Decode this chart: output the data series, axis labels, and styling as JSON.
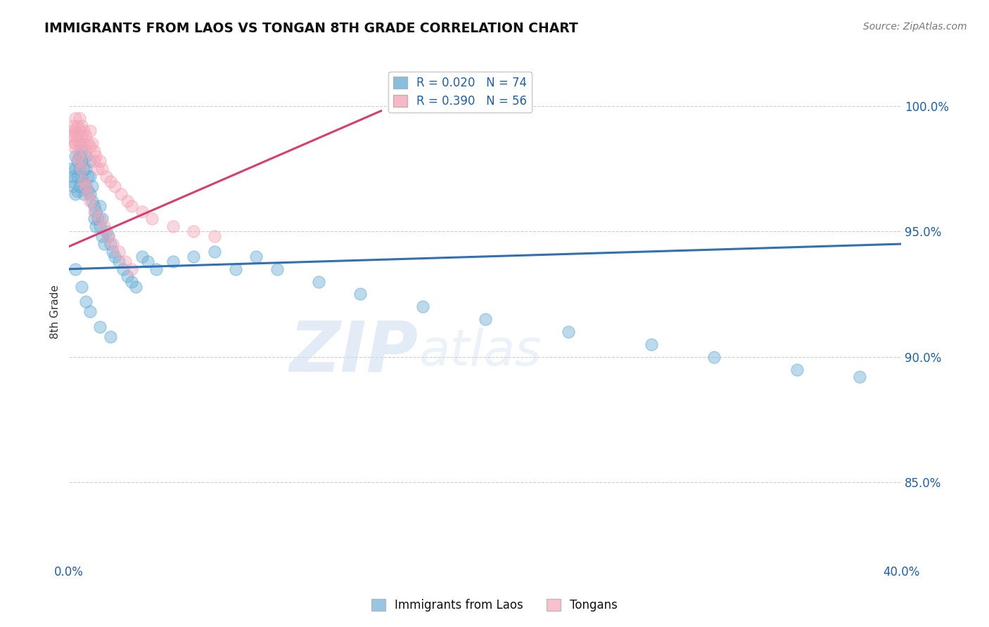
{
  "title": "IMMIGRANTS FROM LAOS VS TONGAN 8TH GRADE CORRELATION CHART",
  "source": "Source: ZipAtlas.com",
  "ylabel": "8th Grade",
  "ytick_labels": [
    "85.0%",
    "90.0%",
    "95.0%",
    "100.0%"
  ],
  "ytick_values": [
    0.85,
    0.9,
    0.95,
    1.0
  ],
  "xlim": [
    0.0,
    0.4
  ],
  "ylim": [
    0.818,
    1.018
  ],
  "legend_blue_r": "R = 0.020",
  "legend_blue_n": "N = 74",
  "legend_pink_r": "R = 0.390",
  "legend_pink_n": "N = 56",
  "legend_label_blue": "Immigrants from Laos",
  "legend_label_pink": "Tongans",
  "blue_color": "#6baed6",
  "pink_color": "#f4a7b9",
  "blue_line_color": "#3070b3",
  "pink_line_color": "#d44070",
  "blue_scatter_x": [
    0.001,
    0.001,
    0.002,
    0.002,
    0.003,
    0.003,
    0.003,
    0.004,
    0.004,
    0.004,
    0.005,
    0.005,
    0.005,
    0.005,
    0.006,
    0.006,
    0.006,
    0.007,
    0.007,
    0.007,
    0.008,
    0.008,
    0.008,
    0.009,
    0.009,
    0.01,
    0.01,
    0.01,
    0.011,
    0.011,
    0.012,
    0.012,
    0.013,
    0.013,
    0.014,
    0.015,
    0.015,
    0.016,
    0.016,
    0.017,
    0.018,
    0.019,
    0.02,
    0.021,
    0.022,
    0.024,
    0.026,
    0.028,
    0.03,
    0.032,
    0.035,
    0.038,
    0.042,
    0.05,
    0.06,
    0.07,
    0.08,
    0.09,
    0.1,
    0.12,
    0.14,
    0.17,
    0.2,
    0.24,
    0.28,
    0.31,
    0.35,
    0.38,
    0.003,
    0.006,
    0.008,
    0.01,
    0.015,
    0.02
  ],
  "blue_scatter_y": [
    0.97,
    0.975,
    0.972,
    0.968,
    0.98,
    0.975,
    0.965,
    0.978,
    0.972,
    0.966,
    0.985,
    0.98,
    0.975,
    0.968,
    0.982,
    0.978,
    0.972,
    0.975,
    0.97,
    0.965,
    0.98,
    0.975,
    0.968,
    0.972,
    0.966,
    0.978,
    0.972,
    0.965,
    0.968,
    0.962,
    0.96,
    0.955,
    0.958,
    0.952,
    0.955,
    0.96,
    0.952,
    0.955,
    0.948,
    0.945,
    0.95,
    0.948,
    0.945,
    0.942,
    0.94,
    0.938,
    0.935,
    0.932,
    0.93,
    0.928,
    0.94,
    0.938,
    0.935,
    0.938,
    0.94,
    0.942,
    0.935,
    0.94,
    0.935,
    0.93,
    0.925,
    0.92,
    0.915,
    0.91,
    0.905,
    0.9,
    0.895,
    0.892,
    0.935,
    0.928,
    0.922,
    0.918,
    0.912,
    0.908
  ],
  "pink_scatter_x": [
    0.001,
    0.001,
    0.002,
    0.002,
    0.002,
    0.003,
    0.003,
    0.003,
    0.004,
    0.004,
    0.005,
    0.005,
    0.005,
    0.006,
    0.006,
    0.007,
    0.007,
    0.008,
    0.008,
    0.009,
    0.01,
    0.01,
    0.011,
    0.012,
    0.012,
    0.013,
    0.014,
    0.015,
    0.016,
    0.018,
    0.02,
    0.022,
    0.025,
    0.028,
    0.03,
    0.035,
    0.04,
    0.05,
    0.06,
    0.07,
    0.003,
    0.004,
    0.005,
    0.006,
    0.007,
    0.008,
    0.009,
    0.01,
    0.012,
    0.015,
    0.017,
    0.019,
    0.021,
    0.024,
    0.027,
    0.03
  ],
  "pink_scatter_y": [
    0.99,
    0.988,
    0.992,
    0.988,
    0.984,
    0.995,
    0.99,
    0.985,
    0.992,
    0.988,
    0.995,
    0.99,
    0.985,
    0.992,
    0.988,
    0.99,
    0.985,
    0.988,
    0.982,
    0.985,
    0.99,
    0.984,
    0.985,
    0.982,
    0.978,
    0.98,
    0.975,
    0.978,
    0.975,
    0.972,
    0.97,
    0.968,
    0.965,
    0.962,
    0.96,
    0.958,
    0.955,
    0.952,
    0.95,
    0.948,
    0.985,
    0.98,
    0.978,
    0.975,
    0.97,
    0.968,
    0.965,
    0.962,
    0.958,
    0.955,
    0.952,
    0.948,
    0.945,
    0.942,
    0.938,
    0.935
  ],
  "blue_trendline_x": [
    0.0,
    0.4
  ],
  "blue_trendline_y": [
    0.935,
    0.945
  ],
  "pink_trendline_x": [
    0.0,
    0.15
  ],
  "pink_trendline_y": [
    0.944,
    0.998
  ],
  "watermark_zip": "ZIP",
  "watermark_atlas": "atlas",
  "grid_color": "#bbbbbb"
}
